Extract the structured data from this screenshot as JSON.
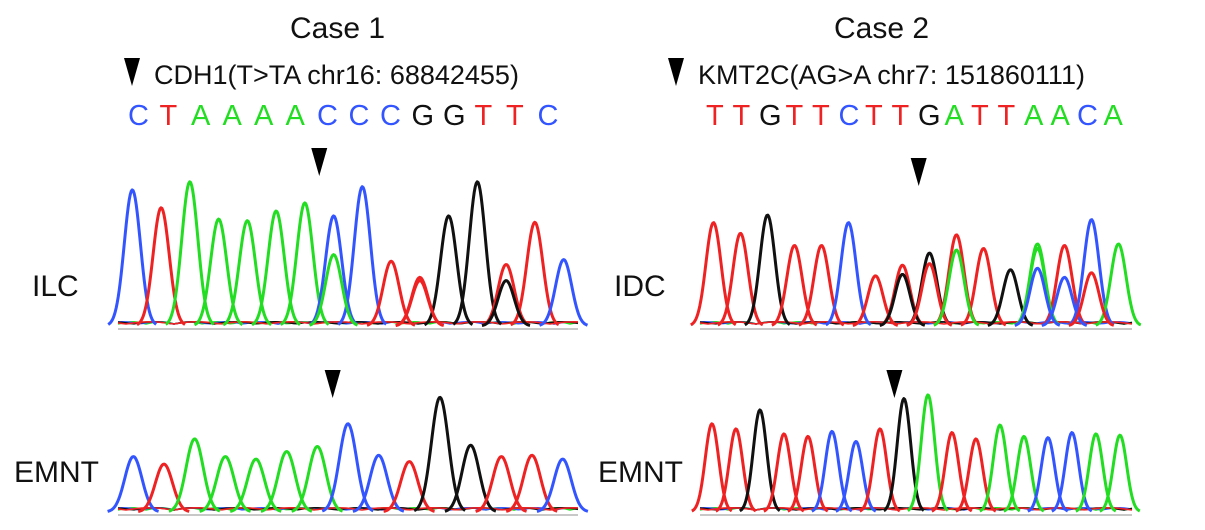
{
  "colors": {
    "A": "#22dd22",
    "C": "#3355ff",
    "G": "#111111",
    "T": "#ee2222"
  },
  "case1": {
    "title": "Case 1",
    "mutation": "CDH1(T>TA chr16: 68842455)",
    "sequence": [
      "C",
      "T",
      "A",
      "A",
      "A",
      "A",
      "C",
      "C",
      "C",
      "G",
      "G",
      "T",
      "T",
      "C"
    ],
    "row_labels": [
      "ILC",
      "EMNT"
    ],
    "traces": [
      {
        "arrow_peak": 6,
        "peaks": [
          [
            "C",
            0.84
          ],
          [
            "T",
            0.73
          ],
          [
            "A",
            0.89
          ],
          [
            "A",
            0.66
          ],
          [
            "A",
            0.65
          ],
          [
            "A",
            0.71
          ],
          [
            "A",
            0.76
          ],
          [
            "C",
            0.68
          ],
          [
            "C",
            0.86
          ],
          [
            "T",
            0.4
          ],
          [
            "T",
            0.28
          ],
          [
            "G",
            0.68
          ],
          [
            "G",
            0.89
          ],
          [
            "T",
            0.38
          ],
          [
            "T",
            0.64
          ],
          [
            "C",
            0.41
          ]
        ],
        "secondary": [
          [
            "A",
            0.44,
            7
          ],
          [
            "T",
            0.3,
            10
          ],
          [
            "G",
            0.28,
            13
          ]
        ]
      },
      {
        "arrow_peak": 6,
        "peaks": [
          [
            "C",
            0.44
          ],
          [
            "T",
            0.38
          ],
          [
            "A",
            0.58
          ],
          [
            "A",
            0.44
          ],
          [
            "A",
            0.42
          ],
          [
            "A",
            0.48
          ],
          [
            "A",
            0.52
          ],
          [
            "C",
            0.7
          ],
          [
            "C",
            0.45
          ],
          [
            "T",
            0.4
          ],
          [
            "G",
            0.91
          ],
          [
            "G",
            0.53
          ],
          [
            "T",
            0.44
          ],
          [
            "T",
            0.45
          ],
          [
            "C",
            0.42
          ]
        ],
        "secondary": []
      }
    ]
  },
  "case2": {
    "title": "Case 2",
    "mutation": "KMT2C(AG>A chr7: 151860111)",
    "sequence": [
      "T",
      "T",
      "G",
      "T",
      "T",
      "C",
      "T",
      "T",
      "G",
      "A",
      "T",
      "T",
      "A",
      "A",
      "C",
      "A"
    ],
    "row_labels": [
      "IDC",
      "EMNT"
    ],
    "traces": [
      {
        "arrow_peak": 7,
        "peaks": [
          [
            "T",
            0.68
          ],
          [
            "T",
            0.61
          ],
          [
            "G",
            0.73
          ],
          [
            "T",
            0.53
          ],
          [
            "T",
            0.53
          ],
          [
            "C",
            0.68
          ],
          [
            "T",
            0.33
          ],
          [
            "T",
            0.4
          ],
          [
            "G",
            0.48
          ],
          [
            "T",
            0.6
          ],
          [
            "T",
            0.51
          ],
          [
            "G",
            0.37
          ],
          [
            "A",
            0.54
          ],
          [
            "T",
            0.53
          ],
          [
            "C",
            0.7
          ],
          [
            "A",
            0.54
          ]
        ],
        "secondary": [
          [
            "G",
            0.34,
            7
          ],
          [
            "T",
            0.41,
            8
          ],
          [
            "A",
            0.5,
            9
          ],
          [
            "A",
            0.51,
            12
          ],
          [
            "C",
            0.32,
            13
          ],
          [
            "T",
            0.35,
            14
          ],
          [
            "C",
            0.38,
            12
          ]
        ]
      },
      {
        "arrow_peak": 7,
        "peaks": [
          [
            "T",
            0.7
          ],
          [
            "T",
            0.66
          ],
          [
            "G",
            0.81
          ],
          [
            "T",
            0.62
          ],
          [
            "T",
            0.6
          ],
          [
            "C",
            0.64
          ],
          [
            "C",
            0.56
          ],
          [
            "T",
            0.66
          ],
          [
            "G",
            0.9
          ],
          [
            "A",
            0.93
          ],
          [
            "T",
            0.63
          ],
          [
            "T",
            0.58
          ],
          [
            "A",
            0.69
          ],
          [
            "A",
            0.6
          ],
          [
            "C",
            0.59
          ],
          [
            "C",
            0.63
          ],
          [
            "A",
            0.62
          ],
          [
            "A",
            0.61
          ]
        ],
        "secondary": []
      }
    ]
  }
}
